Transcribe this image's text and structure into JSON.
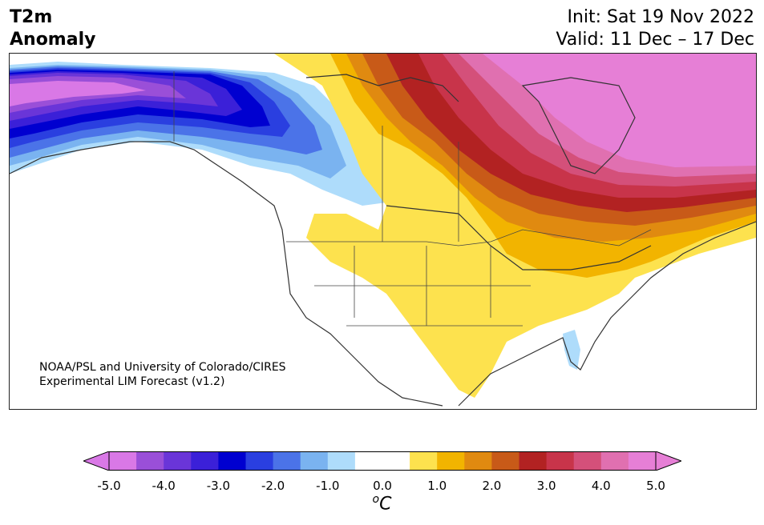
{
  "title": {
    "left_line1": "T2m",
    "left_line2": "Anomaly",
    "init": "Init: Sat 19 Nov 2022",
    "valid": "Valid: 11 Dec – 17 Dec"
  },
  "credit": {
    "line1": "NOAA/PSL and University of Colorado/CIRES",
    "line2": "Experimental LIM Forecast (v1.2)"
  },
  "colorbar": {
    "colors": [
      "#d978e6",
      "#9a4fd8",
      "#6a35d8",
      "#3b20d8",
      "#0000d0",
      "#2a3fe0",
      "#4b73e8",
      "#7ab3f0",
      "#aedcfb",
      "#ffffff",
      "#ffffff",
      "#fde24e",
      "#f2b400",
      "#e08a10",
      "#c85a18",
      "#b22222",
      "#c8344a",
      "#d4507a",
      "#e070b0",
      "#e67fd6"
    ],
    "ticks": [
      "-5.0",
      "-4.0",
      "-3.0",
      "-2.0",
      "-1.0",
      "0.0",
      "1.0",
      "2.0",
      "3.0",
      "4.0",
      "5.0"
    ],
    "unit_base": "C",
    "unit_sup": "o"
  }
}
